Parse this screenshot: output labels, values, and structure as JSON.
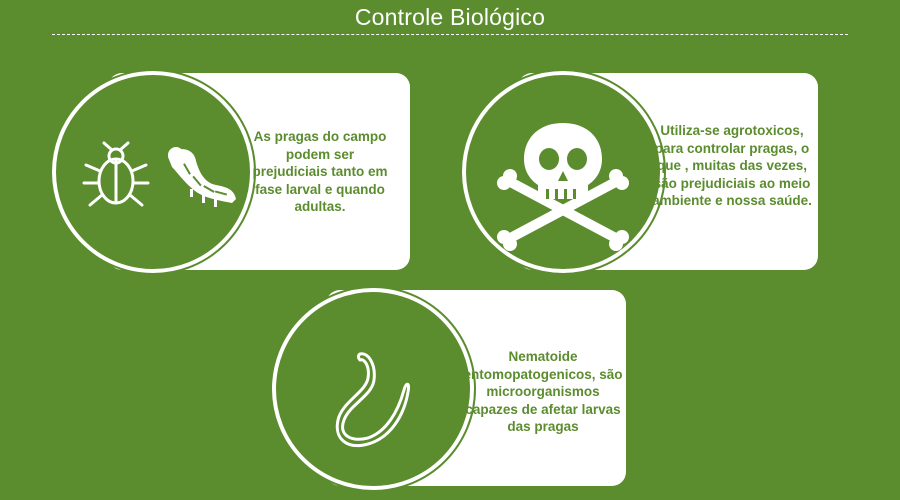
{
  "title": "Controle Biológico",
  "colors": {
    "background": "#5b8c2e",
    "card": "#ffffff",
    "text": "#5b8c2e"
  },
  "cards": [
    {
      "icons": [
        "bug-icon",
        "caterpillar-icon"
      ],
      "text": "As pragas do campo podem ser prejudiciais tanto em fase larval e quando adultas."
    },
    {
      "icons": [
        "skull-crossbones-icon"
      ],
      "text": "Utiliza-se agrotoxicos, para controlar pragas, o que , muitas das vezes, são prejudiciais ao meio ambiente e nossa saúde."
    },
    {
      "icons": [
        "nematode-icon"
      ],
      "text": "Nematoide entomopatogenicos, são microorganismos capazes de afetar larvas das pragas"
    }
  ]
}
